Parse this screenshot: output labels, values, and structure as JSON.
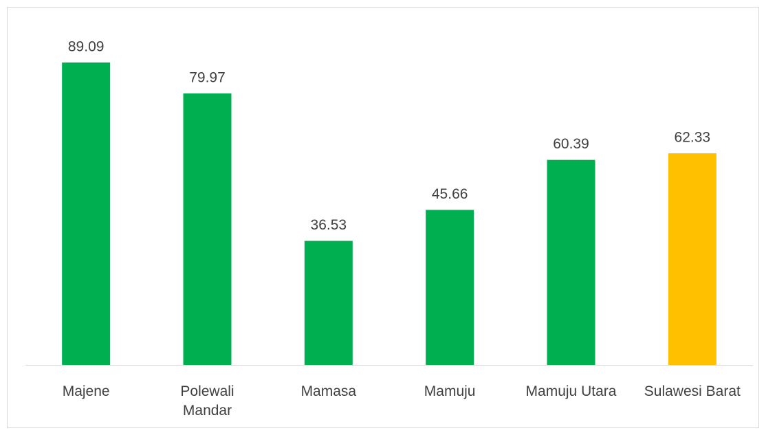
{
  "chart_data": {
    "type": "bar",
    "categories": [
      "Majene",
      "Polewali Mandar",
      "Mamasa",
      "Mamuju",
      "Mamuju Utara",
      "Sulawesi Barat"
    ],
    "values": [
      89.09,
      79.97,
      36.53,
      45.66,
      60.39,
      62.33
    ],
    "colors": [
      "#00b050",
      "#00b050",
      "#00b050",
      "#00b050",
      "#00b050",
      "#ffc000"
    ],
    "ylim": [
      0,
      100
    ]
  }
}
